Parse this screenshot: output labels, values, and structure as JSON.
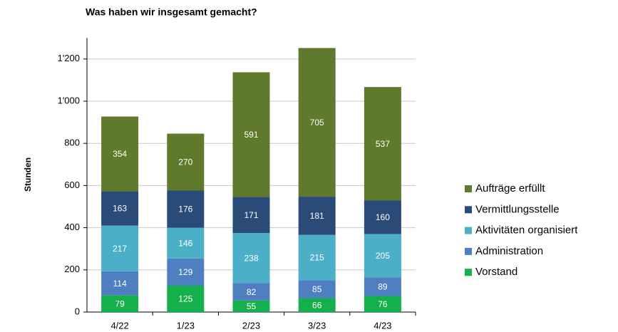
{
  "chart_data": {
    "type": "stacked_bar",
    "title": "Was haben wir insgesamt gemacht?",
    "ylabel": "Stunden",
    "categories": [
      "4/22",
      "1/23",
      "2/23",
      "3/23",
      "4/23"
    ],
    "series": [
      {
        "name": "Vorstand",
        "color": "#13b04b",
        "values": [
          79,
          125,
          55,
          66,
          76
        ]
      },
      {
        "name": "Administration",
        "color": "#4f7fc0",
        "values": [
          114,
          129,
          82,
          85,
          89
        ]
      },
      {
        "name": "Aktivitäten organisiert",
        "color": "#4bafc8",
        "values": [
          217,
          146,
          238,
          215,
          205
        ]
      },
      {
        "name": "Vermittlungsstelle",
        "color": "#2a4a78",
        "values": [
          163,
          176,
          171,
          181,
          160
        ]
      },
      {
        "name": "Aufträge erfüllt",
        "color": "#5f7a2c",
        "values": [
          354,
          270,
          591,
          705,
          537
        ]
      }
    ],
    "ylim": [
      0,
      1300
    ],
    "yticks": [
      0,
      200,
      400,
      600,
      800,
      {
        "value": 1000,
        "label": "1'000"
      },
      {
        "value": 1200,
        "label": "1'200"
      }
    ],
    "grid": true,
    "legend": "right"
  }
}
